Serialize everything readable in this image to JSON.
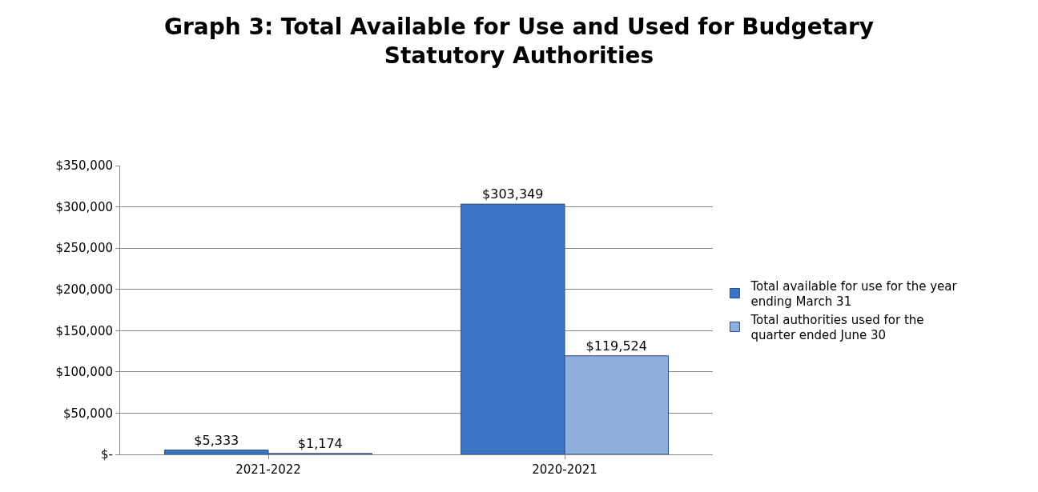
{
  "chart_data": {
    "type": "bar",
    "title": "Graph 3: Total Available for Use and Used for Budgetary Statutory Authorities",
    "categories": [
      "2021-2022",
      "2020-2021"
    ],
    "series": [
      {
        "name": "Total available for use for the year ending March 31",
        "color": "#3a74c2",
        "values": [
          5333,
          303349
        ],
        "value_labels": [
          "$5,333",
          "$303,349"
        ]
      },
      {
        "name": "Total authorities used for the quarter ended June 30",
        "color": "#8eaedb",
        "values": [
          1174,
          119524
        ],
        "value_labels": [
          "$1,174",
          "$119,524"
        ]
      }
    ],
    "ylim": [
      0,
      350000
    ],
    "yticks": [
      {
        "value": 0,
        "label": "$-"
      },
      {
        "value": 50000,
        "label": "$50,000"
      },
      {
        "value": 100000,
        "label": "$100,000"
      },
      {
        "value": 150000,
        "label": "$150,000"
      },
      {
        "value": 200000,
        "label": "$200,000"
      },
      {
        "value": 250000,
        "label": "$250,000"
      },
      {
        "value": 300000,
        "label": "$300,000"
      },
      {
        "value": 350000,
        "label": "$350,000"
      }
    ],
    "grid": "y",
    "legend": "right"
  }
}
